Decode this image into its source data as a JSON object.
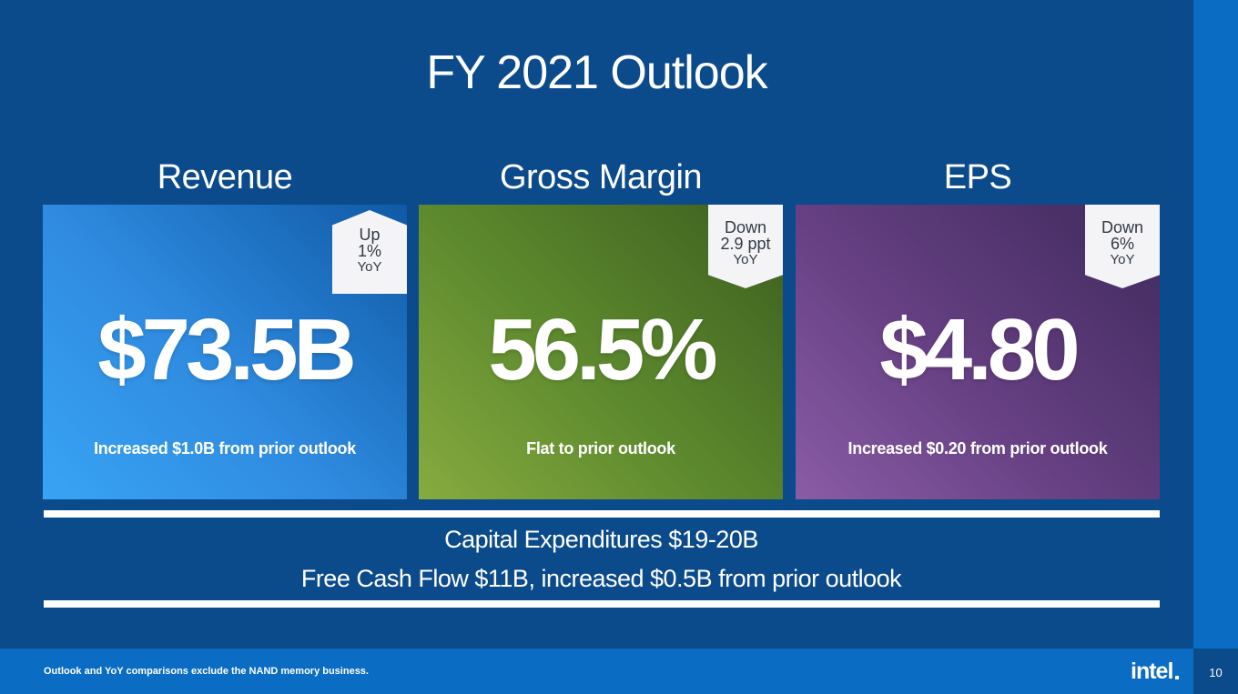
{
  "title": "FY 2021 Outlook",
  "columns": [
    {
      "heading": "Revenue",
      "value": "$73.5B",
      "note": "Increased $1.0B from prior outlook",
      "badge": {
        "direction": "up",
        "line1": "Up",
        "line2": "1%",
        "line3": "YoY"
      },
      "color": "#2f8be0"
    },
    {
      "heading": "Gross Margin",
      "value": "56.5%",
      "note": "Flat to prior outlook",
      "badge": {
        "direction": "down",
        "line1": "Down",
        "line2": "2.9 ppt",
        "line3": "YoY"
      },
      "color": "#5e8a2e"
    },
    {
      "heading": "EPS",
      "value": "$4.80",
      "note": "Increased $0.20 from prior outlook",
      "badge": {
        "direction": "down",
        "line1": "Down",
        "line2": "6%",
        "line3": "YoY"
      },
      "color": "#653f82"
    }
  ],
  "capex_line": "Capital Expenditures $19-20B",
  "fcf_line": "Free Cash Flow $11B, increased $0.5B from prior outlook",
  "footnote": "Outlook and YoY comparisons exclude the NAND memory business.",
  "logo_text": "intel",
  "page_number": "10",
  "colors": {
    "background": "#0b4a8b",
    "accent_strip": "#0a6cc2"
  }
}
